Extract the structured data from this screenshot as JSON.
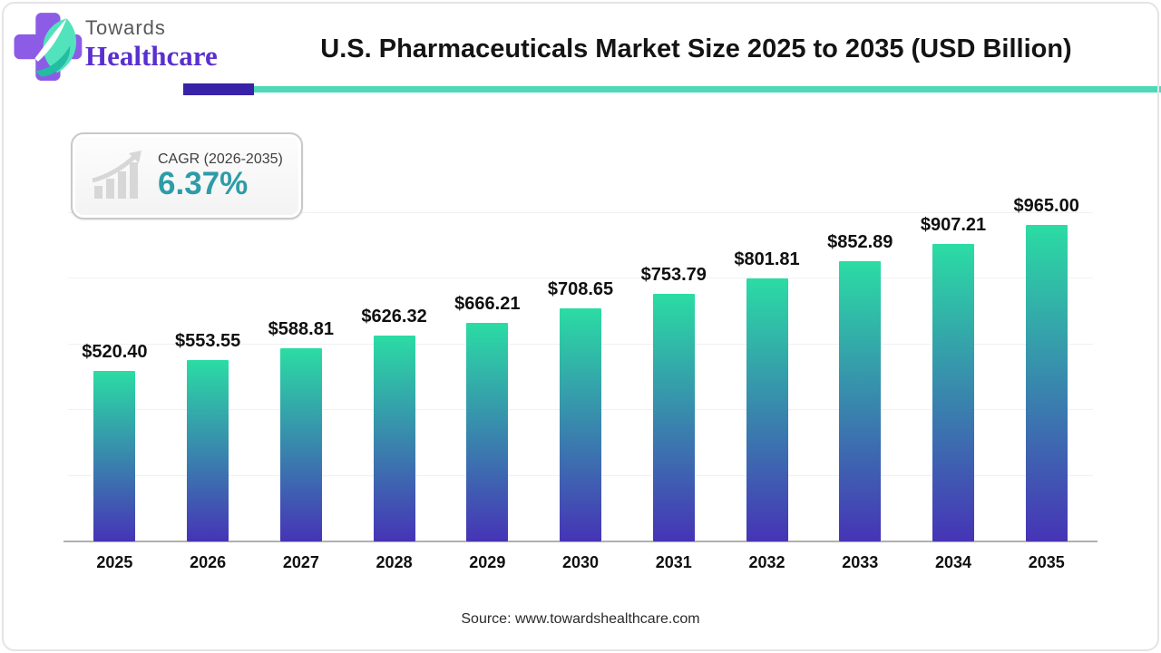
{
  "header": {
    "logo": {
      "line1": "Towards",
      "line2": "Healthcare"
    },
    "title": "U.S. Pharmaceuticals Market Size 2025 to 2035 (USD Billion)"
  },
  "badge": {
    "label": "CAGR (2026-2035)",
    "value": "6.37%"
  },
  "footer": {
    "source": "Source: www.towardshealthcare.com"
  },
  "chart_data": {
    "type": "bar",
    "title": "U.S. Pharmaceuticals Market Size 2025 to 2035 (USD Billion)",
    "unit": "USD Billion",
    "categories": [
      "2025",
      "2026",
      "2027",
      "2028",
      "2029",
      "2030",
      "2031",
      "2032",
      "2033",
      "2034",
      "2035"
    ],
    "values": [
      520.4,
      553.55,
      588.81,
      626.32,
      666.21,
      708.65,
      753.79,
      801.81,
      852.89,
      907.21,
      965.0
    ],
    "value_labels": [
      "$520.40",
      "$553.55",
      "$588.81",
      "$626.32",
      "$666.21",
      "$708.65",
      "$753.79",
      "$801.81",
      "$852.89",
      "$907.21",
      "$965.00"
    ],
    "xlabel": "",
    "ylabel": "",
    "ylim": [
      0,
      1000
    ],
    "gridline_values": [
      200,
      400,
      600,
      800,
      1000
    ],
    "grid": "horizontal-faint",
    "legend": "none",
    "bar_gradient_top": "#2bdca4",
    "bar_gradient_bottom": "#4634b6"
  },
  "colors": {
    "accent_purple": "#3823a8",
    "accent_teal": "#4fd8b7",
    "badge_value_teal": "#2d9ca8",
    "logo_purple": "#8c5ce6",
    "logo_leaf": "#52e3bd",
    "axis_line": "#b0b0b0"
  }
}
